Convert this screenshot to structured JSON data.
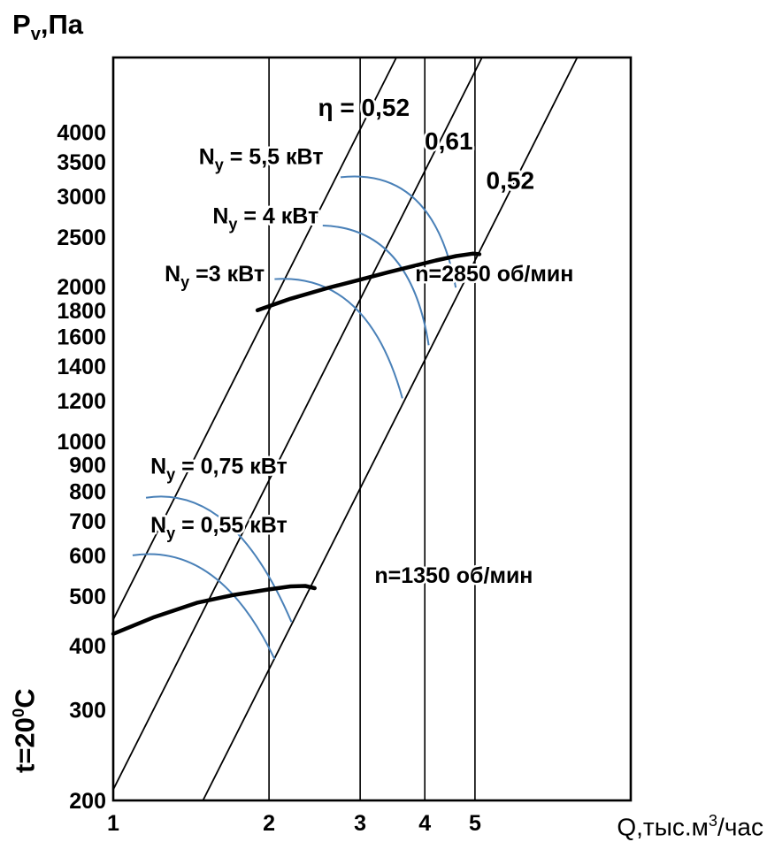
{
  "chart_data": {
    "type": "line",
    "title": "Fan aerodynamic characteristic",
    "ylabel": {
      "main": "P",
      "sub": "v",
      "rest": ",Па"
    },
    "xlabel": {
      "main": "Q,тыс.м",
      "sup": "3",
      "rest": "/час"
    },
    "condition_label": {
      "main": "t=20",
      "sup": "0",
      "rest": "C"
    },
    "log_x": true,
    "log_y": true,
    "grid": "vertical-only",
    "xlim": [
      1,
      10
    ],
    "ylim": [
      200,
      5590
    ],
    "x_ticks": [
      1,
      2,
      3,
      4,
      5
    ],
    "y_ticks": [
      200,
      300,
      400,
      500,
      600,
      700,
      800,
      900,
      1000,
      1200,
      1400,
      1600,
      1800,
      2000,
      2500,
      3000,
      3500,
      4000
    ],
    "colors": {
      "axis": "#000000",
      "power_arc": "#4a81b8",
      "fan_curve": "#000000",
      "text": "#000000"
    },
    "efficiency_lines": [
      {
        "label": "η = 0,52",
        "coeff": 450,
        "label_q": 3.05,
        "label_p": 4300
      },
      {
        "label": "0,61",
        "coeff": 210,
        "label_q": 4.45,
        "label_p": 3700
      },
      {
        "label": "0,52",
        "coeff": 90,
        "label_q": 5.85,
        "label_p": 3100
      }
    ],
    "power_arcs": [
      {
        "label_parts": [
          [
            "n",
            "N"
          ],
          [
            "sub",
            "y"
          ],
          [
            "n",
            " = 5,5 кВт"
          ]
        ],
        "label_q": 1.93,
        "label_p": 3470,
        "start": [
          2.75,
          3268
        ],
        "ctrl": [
          4.15,
          3420
        ],
        "end": [
          4.59,
          1993
        ]
      },
      {
        "label_parts": [
          [
            "n",
            "N"
          ],
          [
            "sub",
            "y"
          ],
          [
            "n",
            " = 4 кВт"
          ]
        ],
        "label_q": 1.97,
        "label_p": 2660,
        "start": [
          2.54,
          2632
        ],
        "ctrl": [
          3.75,
          2600
        ],
        "end": [
          4.07,
          1539
        ]
      },
      {
        "label_parts": [
          [
            "n",
            "N"
          ],
          [
            "sub",
            "y"
          ],
          [
            "n",
            " =3 кВт"
          ]
        ],
        "label_q": 1.57,
        "label_p": 2050,
        "start": [
          2.05,
          2070
        ],
        "ctrl": [
          3.1,
          2130
        ],
        "end": [
          3.62,
          1213
        ]
      },
      {
        "label_parts": [
          [
            "n",
            "N"
          ],
          [
            "sub",
            "y"
          ],
          [
            "n",
            " = 0,75 кВт"
          ]
        ],
        "label_q": 1.6,
        "label_p": 865,
        "start": [
          1.157,
          777
        ],
        "ctrl": [
          1.7,
          825
        ],
        "end": [
          2.21,
          445
        ]
      },
      {
        "label_parts": [
          [
            "n",
            "N"
          ],
          [
            "sub",
            "y"
          ],
          [
            "n",
            " = 0,55 кВт"
          ]
        ],
        "label_q": 1.6,
        "label_p": 665,
        "start": [
          1.09,
          600
        ],
        "ctrl": [
          1.6,
          635
        ],
        "end": [
          2.05,
          377
        ]
      }
    ],
    "fan_curves": [
      {
        "label": "n=2850 об/мин",
        "label_q": 5.45,
        "label_p": 2050,
        "points": [
          [
            1.9,
            1800
          ],
          [
            2.2,
            1895
          ],
          [
            2.6,
            1990
          ],
          [
            3.0,
            2065
          ],
          [
            3.4,
            2135
          ],
          [
            3.8,
            2195
          ],
          [
            4.2,
            2250
          ],
          [
            4.6,
            2295
          ],
          [
            4.95,
            2320
          ],
          [
            5.1,
            2315
          ]
        ]
      },
      {
        "label": "n=1350 об/мин",
        "label_q": 4.55,
        "label_p": 530,
        "points": [
          [
            1.0,
            422
          ],
          [
            1.2,
            455
          ],
          [
            1.45,
            485
          ],
          [
            1.7,
            502
          ],
          [
            2.0,
            515
          ],
          [
            2.2,
            522
          ],
          [
            2.35,
            523
          ],
          [
            2.45,
            518
          ]
        ]
      }
    ]
  }
}
